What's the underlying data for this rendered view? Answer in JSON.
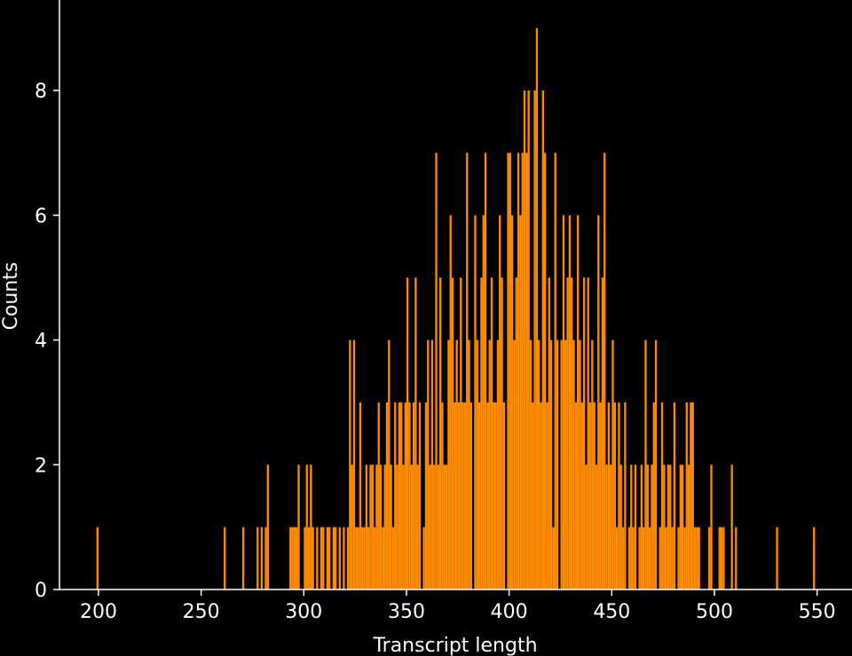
{
  "chart_data": {
    "type": "histogram",
    "xlabel": "Transcript length",
    "ylabel": "Counts",
    "color": "#ff8c00",
    "bins": [
      199,
      200,
      201,
      202,
      203,
      204,
      205,
      206,
      207,
      208,
      209,
      210,
      211,
      212,
      213,
      214,
      215,
      216,
      217,
      218,
      219,
      220,
      221,
      222,
      223,
      224,
      225,
      226,
      227,
      228,
      229,
      230,
      231,
      232,
      233,
      234,
      235,
      236,
      237,
      238,
      239,
      240,
      241,
      242,
      243,
      244,
      245,
      246,
      247,
      248,
      249,
      250,
      251,
      252,
      253,
      254,
      255,
      256,
      257,
      258,
      259,
      260,
      261,
      262,
      263,
      264,
      265,
      266,
      267,
      268,
      269,
      270,
      271,
      272,
      273,
      274,
      275,
      276,
      277,
      278,
      279,
      280,
      281,
      282,
      283,
      284,
      285,
      286,
      287,
      288,
      289,
      290,
      291,
      292,
      293,
      294,
      295,
      296,
      297,
      298,
      299,
      300,
      301,
      302,
      303,
      304,
      305,
      306,
      307,
      308,
      309,
      310,
      311,
      312,
      313,
      314,
      315,
      316,
      317,
      318,
      319,
      320,
      321,
      322,
      323,
      324,
      325,
      326,
      327,
      328,
      329,
      330,
      331,
      332,
      333,
      334,
      335,
      336,
      337,
      338,
      339,
      340,
      341,
      342,
      343,
      344,
      345,
      346,
      347,
      348,
      349,
      350,
      351,
      352,
      353,
      354,
      355,
      356,
      357,
      358,
      359,
      360,
      361,
      362,
      363,
      364,
      365,
      366,
      367,
      368,
      369,
      370,
      371,
      372,
      373,
      374,
      375,
      376,
      377,
      378,
      379,
      380,
      381,
      382,
      383,
      384,
      385,
      386,
      387,
      388,
      389,
      390,
      391,
      392,
      393,
      394,
      395,
      396,
      397,
      398,
      399,
      400,
      401,
      402,
      403,
      404,
      405,
      406,
      407,
      408,
      409,
      410,
      411,
      412,
      413,
      414,
      415,
      416,
      417,
      418,
      419,
      420,
      421,
      422,
      423,
      424,
      425,
      426,
      427,
      428,
      429,
      430,
      431,
      432,
      433,
      434,
      435,
      436,
      437,
      438,
      439,
      440,
      441,
      442,
      443,
      444,
      445,
      446,
      447,
      448,
      449,
      450,
      451,
      452,
      453,
      454,
      455,
      456,
      457,
      458,
      459,
      460,
      461,
      462,
      463,
      464,
      465,
      466,
      467,
      468,
      469,
      470,
      471,
      472,
      473,
      474,
      475,
      476,
      477,
      478,
      479,
      480,
      481,
      482,
      483,
      484,
      485,
      486,
      487,
      488,
      489,
      490,
      491,
      492,
      493,
      494,
      495,
      496,
      497,
      498,
      499,
      500,
      501,
      502,
      503,
      504,
      505,
      506,
      507,
      508,
      509,
      510,
      511,
      512,
      513,
      514,
      515,
      516,
      517,
      518,
      519,
      520,
      521,
      522,
      523,
      524,
      525,
      526,
      527,
      528,
      529,
      530,
      531,
      532,
      533,
      534,
      535,
      536,
      537,
      538,
      539,
      540,
      541,
      542,
      543,
      544,
      545,
      546,
      547,
      548,
      549
    ],
    "counts": [
      1,
      0,
      0,
      0,
      0,
      0,
      0,
      0,
      0,
      0,
      0,
      0,
      0,
      0,
      0,
      0,
      0,
      0,
      0,
      0,
      0,
      0,
      0,
      0,
      0,
      0,
      0,
      0,
      0,
      0,
      0,
      0,
      0,
      0,
      0,
      0,
      0,
      0,
      0,
      0,
      0,
      0,
      0,
      0,
      0,
      0,
      0,
      0,
      0,
      0,
      0,
      0,
      0,
      0,
      0,
      0,
      0,
      0,
      0,
      0,
      0,
      0,
      1,
      0,
      0,
      0,
      0,
      0,
      0,
      0,
      0,
      1,
      0,
      0,
      0,
      0,
      0,
      0,
      1,
      0,
      1,
      0,
      1,
      2,
      0,
      0,
      0,
      0,
      0,
      0,
      0,
      0,
      0,
      0,
      1,
      1,
      1,
      1,
      2,
      0,
      0,
      1,
      2,
      1,
      2,
      1,
      0,
      1,
      0,
      1,
      1,
      0,
      1,
      1,
      0,
      1,
      1,
      0,
      1,
      0,
      1,
      0,
      1,
      4,
      2,
      4,
      1,
      1,
      3,
      1,
      1,
      2,
      1,
      2,
      2,
      1,
      2,
      3,
      2,
      1,
      2,
      3,
      4,
      2,
      1,
      3,
      2,
      3,
      3,
      2,
      3,
      5,
      3,
      2,
      3,
      5,
      2,
      3,
      0,
      1,
      3,
      4,
      2,
      4,
      2,
      7,
      2,
      5,
      3,
      2,
      2,
      4,
      6,
      5,
      3,
      4,
      3,
      5,
      3,
      3,
      7,
      4,
      3,
      0,
      6,
      4,
      3,
      5,
      6,
      7,
      3,
      4,
      5,
      3,
      3,
      4,
      6,
      5,
      3,
      0,
      7,
      7,
      6,
      4,
      5,
      7,
      6,
      7,
      8,
      7,
      8,
      4,
      3,
      8,
      9,
      4,
      3,
      8,
      7,
      3,
      5,
      4,
      1,
      7,
      4,
      0,
      4,
      6,
      4,
      5,
      6,
      5,
      4,
      3,
      6,
      4,
      3,
      5,
      2,
      5,
      3,
      4,
      3,
      2,
      6,
      3,
      5,
      7,
      2,
      3,
      2,
      4,
      3,
      1,
      3,
      2,
      1,
      3,
      0,
      1,
      2,
      1,
      2,
      0,
      1,
      2,
      1,
      4,
      2,
      1,
      2,
      3,
      4,
      0,
      1,
      3,
      2,
      1,
      2,
      2,
      1,
      3,
      0,
      1,
      2,
      2,
      1,
      3,
      2,
      3,
      3,
      1,
      1,
      1,
      0,
      0,
      0,
      0,
      1,
      2,
      0,
      0,
      0,
      1,
      1,
      1,
      0,
      0,
      0,
      2,
      0,
      1,
      0,
      0,
      0,
      0,
      0,
      0,
      0,
      0,
      0,
      0,
      0,
      0,
      0,
      0,
      0,
      0,
      0,
      0,
      0,
      1,
      0,
      0,
      0,
      0,
      0,
      0,
      0,
      0,
      0,
      0,
      0,
      0,
      0,
      0,
      0,
      0,
      0,
      1
    ],
    "xlim": [
      181,
      567
    ],
    "ylim": [
      0,
      9.45
    ],
    "xticks": [
      200,
      250,
      300,
      350,
      400,
      450,
      500,
      550
    ],
    "yticks": [
      0,
      2,
      4,
      6,
      8
    ]
  }
}
